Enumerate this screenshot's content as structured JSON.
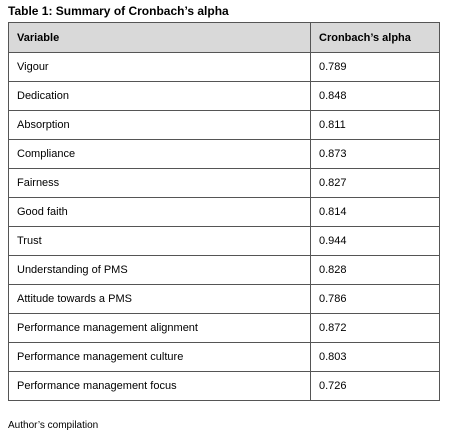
{
  "header": {
    "title": "Table 1: Summary of Cronbach’s alpha"
  },
  "table": {
    "columns": [
      "Variable",
      "Cronbach’s alpha"
    ],
    "rows": [
      [
        "Vigour",
        "0.789"
      ],
      [
        "Dedication",
        "0.848"
      ],
      [
        "Absorption",
        "0.811"
      ],
      [
        "Compliance",
        "0.873"
      ],
      [
        "Fairness",
        "0.827"
      ],
      [
        "Good faith",
        "0.814"
      ],
      [
        "Trust",
        "0.944"
      ],
      [
        "Understanding of PMS",
        "0.828"
      ],
      [
        "Attitude towards a PMS",
        "0.786"
      ],
      [
        "Performance management alignment",
        "0.872"
      ],
      [
        "Performance management culture",
        "0.803"
      ],
      [
        "Performance management focus",
        "0.726"
      ]
    ]
  },
  "footer": "Author’s compilation"
}
